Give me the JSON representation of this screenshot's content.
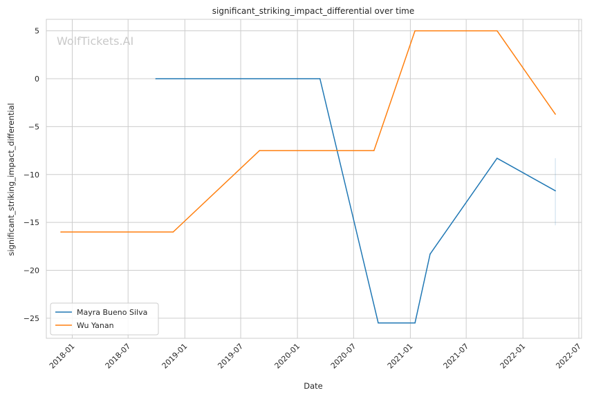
{
  "chart_data": {
    "type": "line",
    "title": "significant_striking_impact_differential over time",
    "xlabel": "Date",
    "ylabel": "significant_striking_impact_differential",
    "watermark": "WolfTickets.AI",
    "xlim": [
      "2017-10-09",
      "2022-07-10"
    ],
    "ylim": [
      -27.1,
      6.2
    ],
    "x_ticks": [
      "2018-01",
      "2018-07",
      "2019-01",
      "2019-07",
      "2020-01",
      "2020-07",
      "2021-01",
      "2021-07",
      "2022-01",
      "2022-07"
    ],
    "y_ticks": [
      5,
      0,
      -5,
      -10,
      -15,
      -20,
      -25
    ],
    "y_tick_labels": [
      "5",
      "0",
      "−5",
      "−10",
      "−15",
      "−20",
      "−25"
    ],
    "grid": true,
    "legend_position": "lower-left",
    "series": [
      {
        "name": "Mayra Bueno Silva",
        "color": "#1f77b4",
        "points": [
          {
            "x": "2018-09-29",
            "y": 0
          },
          {
            "x": "2020-03-14",
            "y": 0
          },
          {
            "x": "2020-09-19",
            "y": -25.5
          },
          {
            "x": "2021-01-16",
            "y": -25.5
          },
          {
            "x": "2021-03-06",
            "y": -18.3
          },
          {
            "x": "2021-10-09",
            "y": -8.3
          },
          {
            "x": "2022-04-16",
            "y": -11.7
          }
        ],
        "band": {
          "x": "2022-04-16",
          "low": -15.3,
          "high": -8.3
        }
      },
      {
        "name": "Wu Yanan",
        "color": "#ff7f0e",
        "points": [
          {
            "x": "2017-11-25",
            "y": -16
          },
          {
            "x": "2018-11-24",
            "y": -16
          },
          {
            "x": "2019-08-31",
            "y": -7.5
          },
          {
            "x": "2020-09-05",
            "y": -7.5
          },
          {
            "x": "2021-01-16",
            "y": 5
          },
          {
            "x": "2021-10-09",
            "y": 5
          },
          {
            "x": "2022-04-16",
            "y": -3.7
          }
        ]
      }
    ]
  }
}
